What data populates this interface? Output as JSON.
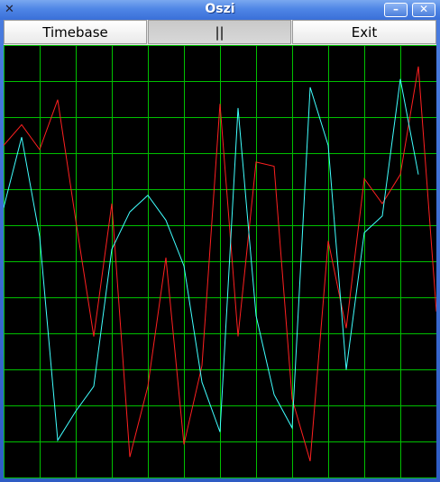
{
  "window": {
    "title": "Oszi"
  },
  "toolbar": {
    "timebase_label": "Timebase",
    "pause_label": "||",
    "exit_label": "Exit"
  },
  "scope": {
    "grid_color": "#00c000",
    "grid_columns": 12,
    "grid_rows": 12,
    "channels": [
      {
        "name": "",
        "color": "#ff2020",
        "values": [
          0.78,
          0.83,
          0.77,
          0.89,
          0.6,
          0.32,
          0.64,
          0.03,
          0.2,
          0.51,
          0.06,
          0.25,
          0.88,
          0.32,
          0.74,
          0.73,
          0.17,
          0.02,
          0.55,
          0.34,
          0.7,
          0.64,
          0.71,
          0.97,
          0.38
        ]
      },
      {
        "name": "",
        "color": "#40ffff",
        "values": [
          0.63,
          0.8,
          0.56,
          0.07,
          0.14,
          0.2,
          0.53,
          0.62,
          0.66,
          0.6,
          0.49,
          0.21,
          0.09,
          0.87,
          0.37,
          0.18,
          0.1,
          0.92,
          0.78,
          0.24,
          0.57,
          0.61,
          0.94,
          0.71
        ]
      }
    ]
  }
}
